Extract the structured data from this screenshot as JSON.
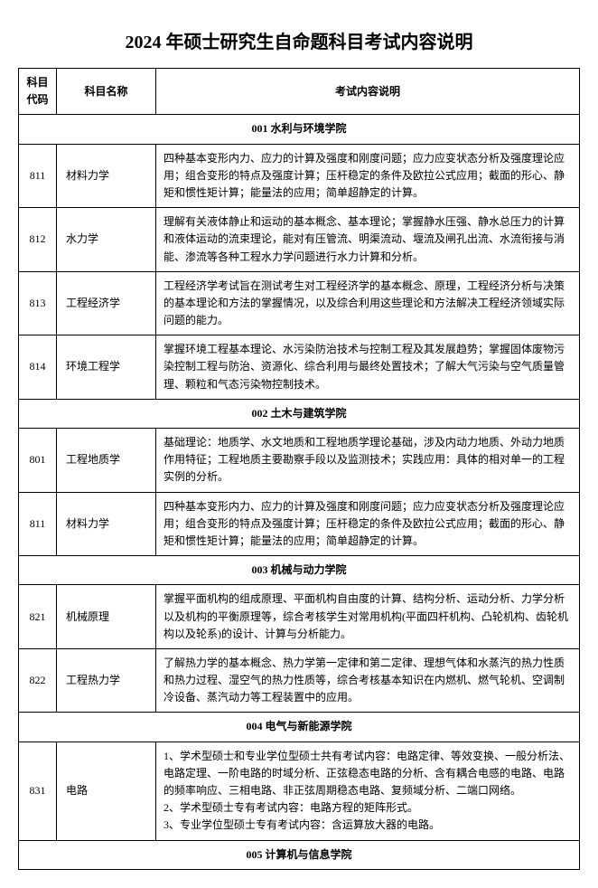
{
  "title": "2024 年硕士研究生自命题科目考试内容说明",
  "headers": {
    "code": "科目代码",
    "name": "科目名称",
    "desc": "考试内容说明"
  },
  "sections": [
    {
      "label": "001 水利与环境学院",
      "rows": [
        {
          "code": "811",
          "name": "材料力学",
          "desc": "四种基本变形内力、应力的计算及强度和刚度问题；应力应变状态分析及强度理论应用；组合变形的特点及强度计算；压杆稳定的条件及欧拉公式应用；截面的形心、静矩和惯性矩计算；能量法的应用；简单超静定的计算。"
        },
        {
          "code": "812",
          "name": "水力学",
          "desc": "理解有关液体静止和运动的基本概念、基本理论；掌握静水压强、静水总压力的计算和液体运动的流束理论，能对有压管流、明渠流动、堰流及闸孔出流、水流衔接与消能、渗流等各种工程水力学问题进行水力计算和分析。"
        },
        {
          "code": "813",
          "name": "工程经济学",
          "desc": "工程经济学考试旨在测试考生对工程经济学的基本概念、原理，工程经济分析与决策的基本理论和方法的掌握情况，以及综合利用这些理论和方法解决工程经济领域实际问题的能力。"
        },
        {
          "code": "814",
          "name": "环境工程学",
          "desc": "掌握环境工程基本理论、水污染防治技术与控制工程及其发展趋势；掌握固体废物污染控制工程与防治、资源化、综合利用与最终处置技术；了解大气污染与空气质量管理、颗粒和气态污染物控制技术。"
        }
      ]
    },
    {
      "label": "002 土木与建筑学院",
      "rows": [
        {
          "code": "801",
          "name": "工程地质学",
          "desc": "基础理论：地质学、水文地质和工程地质学理论基础，涉及内动力地质、外动力地质作用特征；工程地质主要勘察手段以及监测技术；实践应用：具体的相对单一的工程实例的分析。"
        },
        {
          "code": "811",
          "name": "材料力学",
          "desc": "四种基本变形内力、应力的计算及强度和刚度问题；应力应变状态分析及强度理论应用；组合变形的特点及强度计算；压杆稳定的条件及欧拉公式应用；截面的形心、静矩和惯性矩计算；能量法的应用；简单超静定的计算。"
        }
      ]
    },
    {
      "label": "003 机械与动力学院",
      "rows": [
        {
          "code": "821",
          "name": "机械原理",
          "desc": "掌握平面机构的组成原理、平面机构自由度的计算、结构分析、运动分析、力学分析以及机构的平衡原理等，综合考核学生对常用机构(平面四杆机构、凸轮机构、齿轮机构以及轮系)的设计、计算与分析能力。"
        },
        {
          "code": "822",
          "name": "工程热力学",
          "desc": "了解热力学的基本概念、热力学第一定律和第二定律、理想气体和水蒸汽的热力性质和热力过程、湿空气的热力性质等，综合考核基本知识在内燃机、燃气轮机、空调制冷设备、蒸汽动力等工程装置中的应用。"
        }
      ]
    },
    {
      "label": "004 电气与新能源学院",
      "rows": [
        {
          "code": "831",
          "name": "电路",
          "desc": "1、学术型硕士和专业学位型硕士共有考试内容：电路定律、等效变换、一般分析法、电路定理、一阶电路的时域分析、正弦稳态电路的分析、含有耦合电感的电路、电路的频率响应、三相电路、非正弦周期稳态电路、复频域分析、二端口网络。\n2、学术型硕士专有考试内容：电路方程的矩阵形式。\n3、专业学位型硕士专有考试内容：含运算放大器的电路。"
        }
      ]
    },
    {
      "label": "005 计算机与信息学院",
      "rows": []
    }
  ]
}
